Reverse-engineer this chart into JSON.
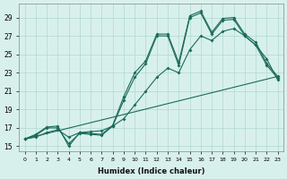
{
  "xlabel": "Humidex (Indice chaleur)",
  "bg_color": "#d8f0ec",
  "grid_color": "#b0d8d0",
  "line_color": "#1a6b5a",
  "xticks": [
    0,
    1,
    2,
    3,
    4,
    5,
    6,
    7,
    8,
    9,
    10,
    11,
    12,
    13,
    14,
    15,
    16,
    17,
    18,
    19,
    20,
    21,
    22,
    23
  ],
  "yticks": [
    15,
    17,
    19,
    21,
    23,
    25,
    27,
    29
  ],
  "series1_x": [
    0,
    1,
    2,
    3,
    4,
    5,
    6,
    7,
    8,
    9,
    10,
    11,
    12,
    13,
    14,
    15,
    16,
    17,
    18,
    19,
    20,
    21,
    22,
    23
  ],
  "series1_y": [
    15.8,
    16.3,
    17.1,
    17.2,
    15.0,
    16.5,
    16.4,
    16.3,
    17.3,
    20.4,
    23.0,
    24.3,
    27.2,
    27.2,
    24.1,
    29.2,
    29.7,
    27.4,
    28.9,
    29.0,
    27.2,
    26.3,
    24.0,
    22.6
  ],
  "series2_x": [
    0,
    1,
    2,
    3,
    4,
    5,
    6,
    7,
    8,
    9,
    10,
    11,
    12,
    13,
    14,
    15,
    16,
    17,
    18,
    19,
    20,
    21,
    22,
    23
  ],
  "series2_y": [
    15.8,
    16.2,
    17.0,
    17.0,
    15.3,
    16.4,
    16.3,
    16.2,
    17.2,
    20.0,
    22.5,
    24.0,
    27.0,
    27.0,
    23.8,
    29.0,
    29.5,
    27.2,
    28.7,
    28.8,
    27.0,
    26.0,
    23.8,
    22.4
  ],
  "series3_x": [
    0,
    23
  ],
  "series3_y": [
    15.8,
    22.6
  ],
  "series4_x": [
    0,
    1,
    2,
    3,
    4,
    5,
    6,
    7,
    8,
    9,
    10,
    11,
    12,
    13,
    14,
    15,
    16,
    17,
    18,
    19,
    20,
    21,
    22,
    23
  ],
  "series4_y": [
    15.8,
    16.0,
    16.5,
    16.8,
    16.0,
    16.5,
    16.6,
    16.7,
    17.2,
    18.0,
    19.5,
    21.0,
    22.5,
    23.5,
    23.0,
    25.5,
    27.0,
    26.5,
    27.5,
    27.8,
    27.0,
    26.0,
    24.5,
    22.2
  ]
}
